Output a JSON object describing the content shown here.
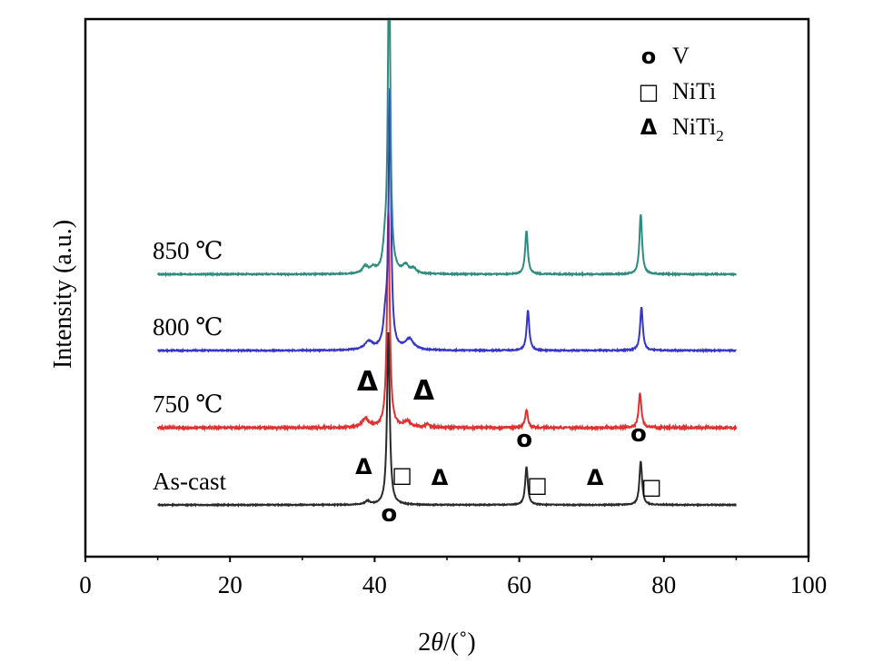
{
  "chart_data": {
    "type": "line",
    "title": "",
    "xlabel_prefix": "2",
    "xlabel_symbol": "θ",
    "xlabel_suffix": "/(˚)",
    "ylabel": "Intensity (a.u.)",
    "xlim": [
      0,
      100
    ],
    "xticks": [
      0,
      20,
      40,
      60,
      80,
      100
    ],
    "yticks_visible": false,
    "grid": false,
    "x_range_data": [
      10,
      90
    ],
    "series": [
      {
        "name": "As-cast",
        "color": "#2a2a2a",
        "baseline": 0,
        "noise": 0.5,
        "peaks": [
          [
            39.0,
            4,
            0.4
          ],
          [
            41.9,
            190,
            0.22
          ],
          [
            61.0,
            42,
            0.22
          ],
          [
            76.8,
            48,
            0.22
          ]
        ]
      },
      {
        "name": "750 ℃",
        "color": "#e03030",
        "baseline": 85,
        "noise": 1.1,
        "peaks": [
          [
            38.7,
            10,
            0.5
          ],
          [
            41.9,
            240,
            0.22
          ],
          [
            44.5,
            6,
            0.6
          ],
          [
            47.3,
            4,
            0.3
          ],
          [
            61.0,
            20,
            0.22
          ],
          [
            76.7,
            38,
            0.22
          ]
        ]
      },
      {
        "name": "800 ℃",
        "color": "#3535c8",
        "baseline": 170,
        "noise": 0.6,
        "peaks": [
          [
            39.2,
            9,
            0.7
          ],
          [
            41.5,
            30,
            0.35
          ],
          [
            42.1,
            280,
            0.2
          ],
          [
            44.8,
            12,
            0.7
          ],
          [
            61.2,
            44,
            0.22
          ],
          [
            76.9,
            48,
            0.22
          ]
        ]
      },
      {
        "name": "850 ℃",
        "color": "#2d8c7d",
        "baseline": 254,
        "noise": 0.6,
        "peaks": [
          [
            38.7,
            8,
            0.45
          ],
          [
            39.8,
            6,
            0.4
          ],
          [
            41.4,
            22,
            0.3
          ],
          [
            42.0,
            360,
            0.2
          ],
          [
            44.3,
            9,
            0.5
          ],
          [
            45.4,
            5,
            0.4
          ],
          [
            61.0,
            48,
            0.22
          ],
          [
            76.8,
            66,
            0.22
          ]
        ]
      }
    ],
    "legend": [
      {
        "symbol": "o",
        "label": "V"
      },
      {
        "symbol": "□",
        "label": "NiTi"
      },
      {
        "symbol": "Δ",
        "label": "NiTi",
        "sub": "2"
      }
    ],
    "annotations": [
      {
        "symbol": "Δ",
        "x": 38.5,
        "y": 34,
        "size": "normal"
      },
      {
        "symbol": "□",
        "x": 43.8,
        "y": 25,
        "size": "normal"
      },
      {
        "symbol": "o",
        "x": 42.0,
        "y": -18,
        "size": "normal"
      },
      {
        "symbol": "Δ",
        "x": 49.0,
        "y": 22,
        "size": "normal"
      },
      {
        "symbol": "o",
        "x": 60.7,
        "y": 64,
        "size": "normal"
      },
      {
        "symbol": "□",
        "x": 62.5,
        "y": 14,
        "size": "normal"
      },
      {
        "symbol": "Δ",
        "x": 70.5,
        "y": 22,
        "size": "normal"
      },
      {
        "symbol": "o",
        "x": 76.5,
        "y": 70,
        "size": "normal"
      },
      {
        "symbol": "□",
        "x": 78.3,
        "y": 12,
        "size": "normal"
      },
      {
        "symbol": "Δ",
        "x": 39.0,
        "y": 126,
        "size": "large"
      },
      {
        "symbol": "Δ",
        "x": 46.8,
        "y": 116,
        "size": "large"
      }
    ]
  }
}
